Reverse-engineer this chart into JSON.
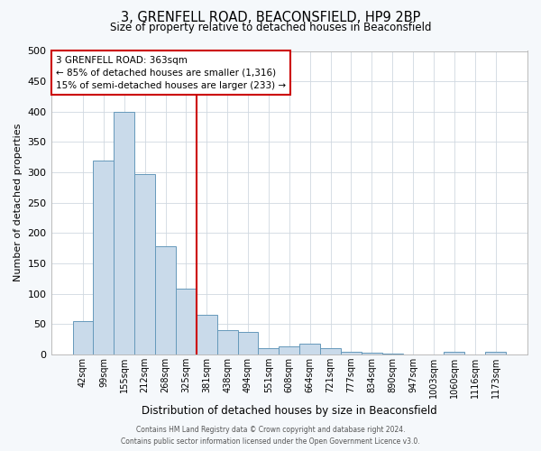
{
  "title": "3, GRENFELL ROAD, BEACONSFIELD, HP9 2BP",
  "subtitle": "Size of property relative to detached houses in Beaconsfield",
  "xlabel": "Distribution of detached houses by size in Beaconsfield",
  "ylabel": "Number of detached properties",
  "bin_labels": [
    "42sqm",
    "99sqm",
    "155sqm",
    "212sqm",
    "268sqm",
    "325sqm",
    "381sqm",
    "438sqm",
    "494sqm",
    "551sqm",
    "608sqm",
    "664sqm",
    "721sqm",
    "777sqm",
    "834sqm",
    "890sqm",
    "947sqm",
    "1003sqm",
    "1060sqm",
    "1116sqm",
    "1173sqm"
  ],
  "bar_values": [
    55,
    320,
    400,
    297,
    178,
    108,
    65,
    40,
    37,
    10,
    13,
    18,
    10,
    5,
    3,
    2,
    0,
    0,
    5,
    0,
    5
  ],
  "bar_color": "#c9daea",
  "bar_edge_color": "#6699bb",
  "vline_index": 6,
  "vline_color": "#cc0000",
  "annotation_line1": "3 GRENFELL ROAD: 363sqm",
  "annotation_line2": "← 85% of detached houses are smaller (1,316)",
  "annotation_line3": "15% of semi-detached houses are larger (233) →",
  "annotation_box_facecolor": "#ffffff",
  "annotation_box_edgecolor": "#cc0000",
  "ylim": [
    0,
    500
  ],
  "yticks": [
    0,
    50,
    100,
    150,
    200,
    250,
    300,
    350,
    400,
    450,
    500
  ],
  "footer_line1": "Contains HM Land Registry data © Crown copyright and database right 2024.",
  "footer_line2": "Contains public sector information licensed under the Open Government Licence v3.0.",
  "fig_facecolor": "#f5f8fb",
  "plot_facecolor": "#ffffff",
  "grid_color": "#d0d8e0",
  "title_fontsize": 10.5,
  "subtitle_fontsize": 8.5,
  "ylabel_fontsize": 8,
  "xlabel_fontsize": 8.5,
  "ytick_fontsize": 8,
  "xtick_fontsize": 7,
  "annotation_fontsize": 7.5,
  "footer_fontsize": 5.5
}
